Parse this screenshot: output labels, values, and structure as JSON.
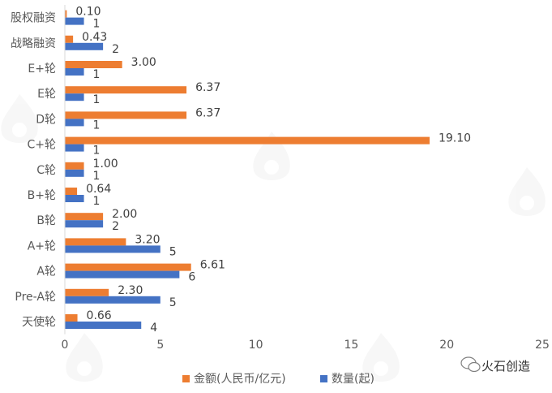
{
  "chart_data": {
    "type": "bar",
    "orientation": "horizontal",
    "categories": [
      "股权融资",
      "战略融资",
      "E+轮",
      "E轮",
      "D轮",
      "C+轮",
      "C轮",
      "B+轮",
      "B轮",
      "A+轮",
      "A轮",
      "Pre-A轮",
      "天使轮"
    ],
    "series": [
      {
        "name": "金额(人民币/亿元)",
        "color": "#ED7D31",
        "values": [
          0.1,
          0.43,
          3.0,
          6.37,
          6.37,
          19.1,
          1.0,
          0.64,
          2.0,
          3.2,
          6.61,
          2.3,
          0.66
        ],
        "labels": [
          "0.10",
          "0.43",
          "3.00",
          "6.37",
          "6.37",
          "19.10",
          "1.00",
          "0.64",
          "2.00",
          "3.20",
          "6.61",
          "2.30",
          "0.66"
        ]
      },
      {
        "name": "数量(起)",
        "color": "#4472C4",
        "values": [
          1,
          2,
          1,
          1,
          1,
          1,
          1,
          1,
          2,
          5,
          6,
          5,
          4
        ],
        "labels": [
          "1",
          "2",
          "1",
          "1",
          "1",
          "1",
          "1",
          "1",
          "2",
          "5",
          "6",
          "5",
          "4"
        ]
      }
    ],
    "xlim": [
      0,
      25
    ],
    "xticks": [
      "0",
      "5",
      "10",
      "15",
      "20",
      "25"
    ],
    "grid": false,
    "legend_position": "bottom"
  },
  "watermark": {
    "text": "火石创造"
  }
}
